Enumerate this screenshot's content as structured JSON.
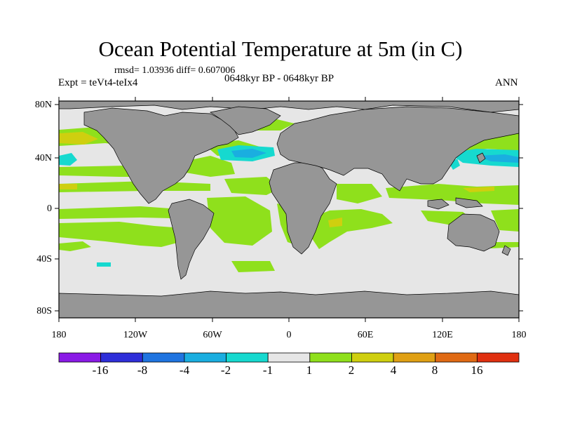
{
  "title": "Ocean Potential Temperature at 5m (in C)",
  "stats": "rmsd= 1.03936 diff= 0.607006",
  "experiment": "Expt = teVt4-teIx4",
  "period": "0648kyr BP - 0648kyr BP",
  "season": "ANN",
  "axes": {
    "lon_ticks": [
      "180",
      "120W",
      "60W",
      "0",
      "60E",
      "120E",
      "180"
    ],
    "lat_ticks": [
      "80N",
      "40N",
      "0",
      "40S",
      "80S"
    ]
  },
  "colorbar": {
    "colors": [
      "#8a1ae6",
      "#2e2ed9",
      "#1f74e0",
      "#1aaee0",
      "#16d9cf",
      "#e6e6e6",
      "#8fe01c",
      "#cfcf0f",
      "#e0a014",
      "#e06a14",
      "#e03010"
    ],
    "labels": [
      "-16",
      "-8",
      "-4",
      "-2",
      "-1",
      "1",
      "2",
      "4",
      "8",
      "16"
    ]
  },
  "map_colors": {
    "land": "#969696",
    "ocean_neutral": "#e6e6e6",
    "green": "#8fe01c",
    "yellow": "#cfcf0f",
    "orange": "#e0a014",
    "cyan": "#16d9cf",
    "lightblue": "#1aaee0",
    "blue": "#1f74e0"
  }
}
